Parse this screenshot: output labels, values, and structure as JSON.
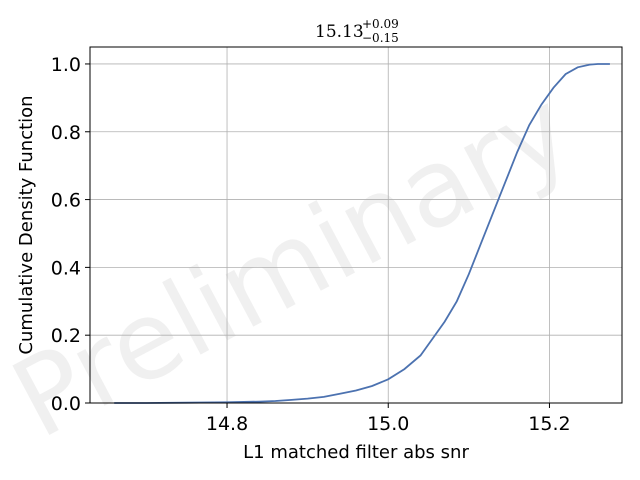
{
  "chart_data": {
    "type": "line",
    "title": {
      "value": "15.13",
      "upper": "+0.09",
      "lower": "−0.15"
    },
    "xlabel": "L1 matched filter abs snr",
    "ylabel": "Cumulative Density Function",
    "xlim": [
      14.63,
      15.29
    ],
    "ylim": [
      -0.0,
      1.05
    ],
    "xticks": [
      14.8,
      15.0,
      15.2
    ],
    "xtick_labels": [
      "14.8",
      "15.0",
      "15.2"
    ],
    "yticks": [
      0.0,
      0.2,
      0.4,
      0.6,
      0.8,
      1.0
    ],
    "ytick_labels": [
      "0.0",
      "0.2",
      "0.4",
      "0.6",
      "0.8",
      "1.0"
    ],
    "grid": true,
    "watermark": "Preliminary",
    "line_color": "#4c72b0",
    "series": [
      {
        "x": [
          14.66,
          14.7,
          14.75,
          14.8,
          14.84,
          14.86,
          14.88,
          14.9,
          14.92,
          14.94,
          14.96,
          14.98,
          15.0,
          15.02,
          15.04,
          15.055,
          15.07,
          15.085,
          15.1,
          15.115,
          15.13,
          15.145,
          15.16,
          15.175,
          15.19,
          15.205,
          15.22,
          15.235,
          15.25,
          15.26,
          15.275
        ],
        "y": [
          0.0,
          0.0,
          0.001,
          0.002,
          0.004,
          0.006,
          0.009,
          0.013,
          0.018,
          0.027,
          0.037,
          0.05,
          0.07,
          0.1,
          0.14,
          0.19,
          0.24,
          0.3,
          0.38,
          0.47,
          0.56,
          0.65,
          0.74,
          0.82,
          0.88,
          0.93,
          0.97,
          0.99,
          0.998,
          1.0,
          1.0
        ]
      }
    ]
  }
}
